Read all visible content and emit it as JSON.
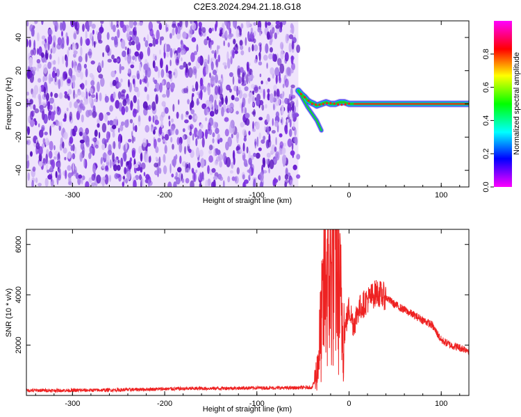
{
  "title": "C2E3.2024.294.21.18.G18",
  "colors": {
    "noise_purple": "#7a2de0",
    "snr_line": "#ee2222",
    "trace_core": "#22cc22",
    "axis": "#000000"
  },
  "chart_data": [
    {
      "type": "heatmap",
      "title": "C2E3.2024.294.21.18.G18",
      "xlabel": "Height of straight line (km)",
      "ylabel": "Frequency (Hz)",
      "xlim": [
        -350,
        130
      ],
      "ylim": [
        -50,
        50
      ],
      "xticks": [
        -300,
        -200,
        -100,
        0,
        100
      ],
      "xtick_labels": [
        "-300",
        "-200",
        "-100",
        "0",
        "100"
      ],
      "yticks": [
        -40,
        -20,
        0,
        20,
        40
      ],
      "ytick_labels": [
        "-40",
        "-20",
        "0",
        "20",
        "40"
      ],
      "noise_region_x": [
        -350,
        -55
      ],
      "signal_trace": {
        "x": [
          -55,
          -52,
          -48,
          -45,
          -42,
          -38,
          -35,
          -30,
          -25,
          -20,
          -15,
          -10,
          -5,
          0,
          5,
          130
        ],
        "y": [
          8,
          6,
          4,
          2,
          1,
          0,
          -1,
          0,
          1,
          0,
          0,
          1,
          1,
          0,
          0,
          0
        ]
      },
      "secondary_trace": {
        "x": [
          -55,
          -50,
          -45,
          -40,
          -35,
          -30
        ],
        "y": [
          8,
          3,
          -2,
          -6,
          -10,
          -16
        ]
      },
      "colorbar": {
        "label": "Normalized spectral amplitude",
        "range": [
          0.0,
          1.0
        ],
        "ticks": [
          0.0,
          0.2,
          0.4,
          0.6,
          0.8
        ],
        "tick_labels": [
          "0.0",
          "0.2",
          "0.4",
          "0.6",
          "0.8"
        ],
        "colors": [
          "#ff00ff",
          "#0000ff",
          "#00ffff",
          "#00ff00",
          "#ffff00",
          "#ff0000",
          "#ff00ff"
        ]
      }
    },
    {
      "type": "line",
      "xlabel": "Height of straight line (km)",
      "ylabel": "SNR (10 * v/v)",
      "xlim": [
        -350,
        130
      ],
      "ylim": [
        0,
        6600
      ],
      "xticks": [
        -300,
        -200,
        -100,
        0,
        100
      ],
      "xtick_labels": [
        "-300",
        "-200",
        "-100",
        "0",
        "100"
      ],
      "yticks": [
        2000,
        4000,
        6000
      ],
      "ytick_labels": [
        "2000",
        "4000",
        "6000"
      ],
      "series": [
        {
          "x": [
            -350,
            -300,
            -250,
            -200,
            -150,
            -100,
            -60,
            -40,
            -35,
            -30,
            -25,
            -20,
            -15,
            -10,
            -5,
            0,
            5,
            10,
            20,
            30,
            40,
            50,
            60,
            70,
            80,
            90,
            95,
            100,
            110,
            120,
            130
          ],
          "y": [
            200,
            200,
            220,
            260,
            280,
            300,
            300,
            320,
            900,
            2800,
            5000,
            4500,
            6200,
            3800,
            2500,
            3500,
            2800,
            3400,
            3800,
            4100,
            3900,
            3600,
            3400,
            3200,
            3000,
            2800,
            2500,
            2200,
            2000,
            1900,
            1800
          ]
        }
      ]
    }
  ]
}
